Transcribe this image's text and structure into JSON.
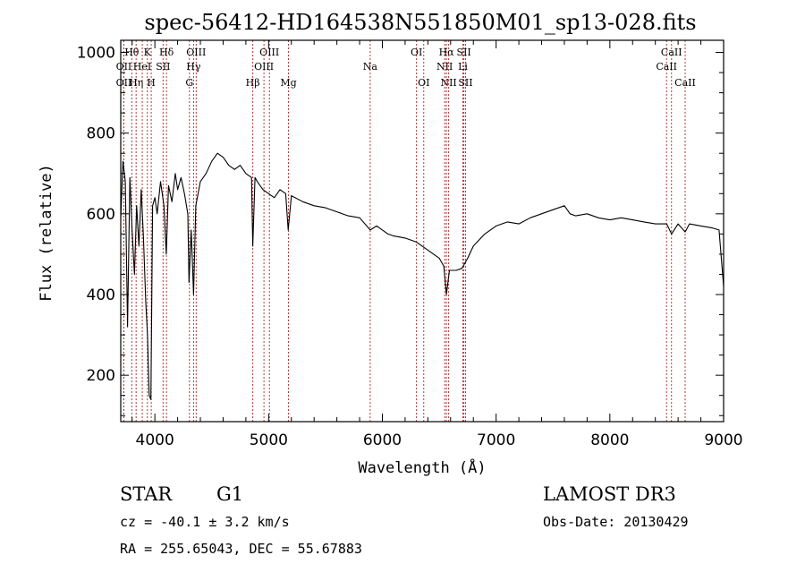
{
  "chart_data": {
    "type": "line",
    "title": "spec-56412-HD164538N551850M01_sp13-028.fits",
    "xlabel": "Wavelength (Å)",
    "ylabel": "Flux (relative)",
    "xlim": [
      3700,
      9000
    ],
    "ylim": [
      85,
      1030
    ],
    "xticks": [
      4000,
      5000,
      6000,
      7000,
      8000,
      9000
    ],
    "yticks": [
      200,
      400,
      600,
      800,
      1000
    ],
    "series": [
      {
        "name": "flux",
        "points": [
          [
            3700,
            590
          ],
          [
            3720,
            730
          ],
          [
            3740,
            680
          ],
          [
            3760,
            320
          ],
          [
            3780,
            690
          ],
          [
            3800,
            560
          ],
          [
            3820,
            450
          ],
          [
            3840,
            620
          ],
          [
            3860,
            520
          ],
          [
            3880,
            660
          ],
          [
            3900,
            540
          ],
          [
            3920,
            380
          ],
          [
            3935,
            300
          ],
          [
            3950,
            150
          ],
          [
            3965,
            140
          ],
          [
            3980,
            620
          ],
          [
            4000,
            640
          ],
          [
            4020,
            600
          ],
          [
            4050,
            680
          ],
          [
            4080,
            620
          ],
          [
            4100,
            500
          ],
          [
            4120,
            670
          ],
          [
            4150,
            630
          ],
          [
            4180,
            700
          ],
          [
            4200,
            660
          ],
          [
            4230,
            690
          ],
          [
            4260,
            650
          ],
          [
            4290,
            600
          ],
          [
            4300,
            430
          ],
          [
            4320,
            560
          ],
          [
            4340,
            400
          ],
          [
            4360,
            620
          ],
          [
            4400,
            680
          ],
          [
            4450,
            700
          ],
          [
            4500,
            730
          ],
          [
            4550,
            750
          ],
          [
            4600,
            740
          ],
          [
            4650,
            720
          ],
          [
            4700,
            710
          ],
          [
            4750,
            720
          ],
          [
            4800,
            700
          ],
          [
            4850,
            690
          ],
          [
            4861,
            520
          ],
          [
            4880,
            690
          ],
          [
            4900,
            680
          ],
          [
            4950,
            660
          ],
          [
            5000,
            650
          ],
          [
            5050,
            640
          ],
          [
            5100,
            660
          ],
          [
            5150,
            650
          ],
          [
            5172,
            560
          ],
          [
            5200,
            645
          ],
          [
            5300,
            630
          ],
          [
            5400,
            620
          ],
          [
            5500,
            615
          ],
          [
            5600,
            605
          ],
          [
            5700,
            595
          ],
          [
            5800,
            590
          ],
          [
            5893,
            560
          ],
          [
            5950,
            570
          ],
          [
            6000,
            560
          ],
          [
            6050,
            550
          ],
          [
            6100,
            545
          ],
          [
            6200,
            540
          ],
          [
            6300,
            530
          ],
          [
            6400,
            510
          ],
          [
            6500,
            490
          ],
          [
            6540,
            470
          ],
          [
            6563,
            400
          ],
          [
            6590,
            460
          ],
          [
            6650,
            460
          ],
          [
            6700,
            465
          ],
          [
            6750,
            490
          ],
          [
            6800,
            520
          ],
          [
            6900,
            550
          ],
          [
            7000,
            570
          ],
          [
            7100,
            580
          ],
          [
            7200,
            575
          ],
          [
            7300,
            590
          ],
          [
            7400,
            600
          ],
          [
            7500,
            610
          ],
          [
            7600,
            620
          ],
          [
            7650,
            600
          ],
          [
            7700,
            595
          ],
          [
            7800,
            600
          ],
          [
            7900,
            590
          ],
          [
            8000,
            585
          ],
          [
            8100,
            590
          ],
          [
            8200,
            585
          ],
          [
            8300,
            580
          ],
          [
            8400,
            575
          ],
          [
            8500,
            575
          ],
          [
            8542,
            550
          ],
          [
            8600,
            575
          ],
          [
            8662,
            555
          ],
          [
            8700,
            575
          ],
          [
            8800,
            570
          ],
          [
            8900,
            565
          ],
          [
            8960,
            560
          ],
          [
            9000,
            420
          ]
        ]
      }
    ],
    "lines": [
      {
        "label": "Hθ",
        "wl": 3797,
        "row": 1
      },
      {
        "label": "K",
        "wl": 3934,
        "row": 1
      },
      {
        "label": "Hδ",
        "wl": 4102,
        "row": 1
      },
      {
        "label": "OIII",
        "wl": 4363,
        "row": 1
      },
      {
        "label": "OIII",
        "wl": 5007,
        "row": 1
      },
      {
        "label": "OI",
        "wl": 6300,
        "row": 1
      },
      {
        "label": "Hα",
        "wl": 6563,
        "row": 1
      },
      {
        "label": "SII",
        "wl": 6717,
        "row": 1
      },
      {
        "label": "CaII",
        "wl": 8542,
        "row": 1
      },
      {
        "label": "OII",
        "wl": 3727,
        "row": 2
      },
      {
        "label": "HeI",
        "wl": 3889,
        "row": 2
      },
      {
        "label": "SII",
        "wl": 4072,
        "row": 2
      },
      {
        "label": "Hγ",
        "wl": 4340,
        "row": 2
      },
      {
        "label": "OIII",
        "wl": 4959,
        "row": 2
      },
      {
        "label": "Na",
        "wl": 5893,
        "row": 2
      },
      {
        "label": "NII",
        "wl": 6548,
        "row": 2
      },
      {
        "label": "Li",
        "wl": 6708,
        "row": 2
      },
      {
        "label": "CaII",
        "wl": 8498,
        "row": 2
      },
      {
        "label": "OII",
        "wl": 3727,
        "row": 3
      },
      {
        "label": "Hη",
        "wl": 3835,
        "row": 3
      },
      {
        "label": "H",
        "wl": 3968,
        "row": 3
      },
      {
        "label": "G",
        "wl": 4304,
        "row": 3
      },
      {
        "label": "Hβ",
        "wl": 4861,
        "row": 3
      },
      {
        "label": "Mg",
        "wl": 5175,
        "row": 3
      },
      {
        "label": "OI",
        "wl": 6364,
        "row": 3
      },
      {
        "label": "NII",
        "wl": 6583,
        "row": 3
      },
      {
        "label": "SII",
        "wl": 6731,
        "row": 3
      },
      {
        "label": "CaII",
        "wl": 8662,
        "row": 3
      }
    ],
    "colors": {
      "spectrum": "#000000",
      "line_markers": "#b22222",
      "axes": "#000000"
    }
  },
  "info": {
    "object_class": "STAR",
    "subclass": "G1",
    "survey": "LAMOST DR3",
    "redshift": "cz = -40.1 ± 3.2 km/s",
    "obs_date": "Obs-Date: 20130429",
    "coords": "RA = 255.65043, DEC =  55.67883"
  }
}
